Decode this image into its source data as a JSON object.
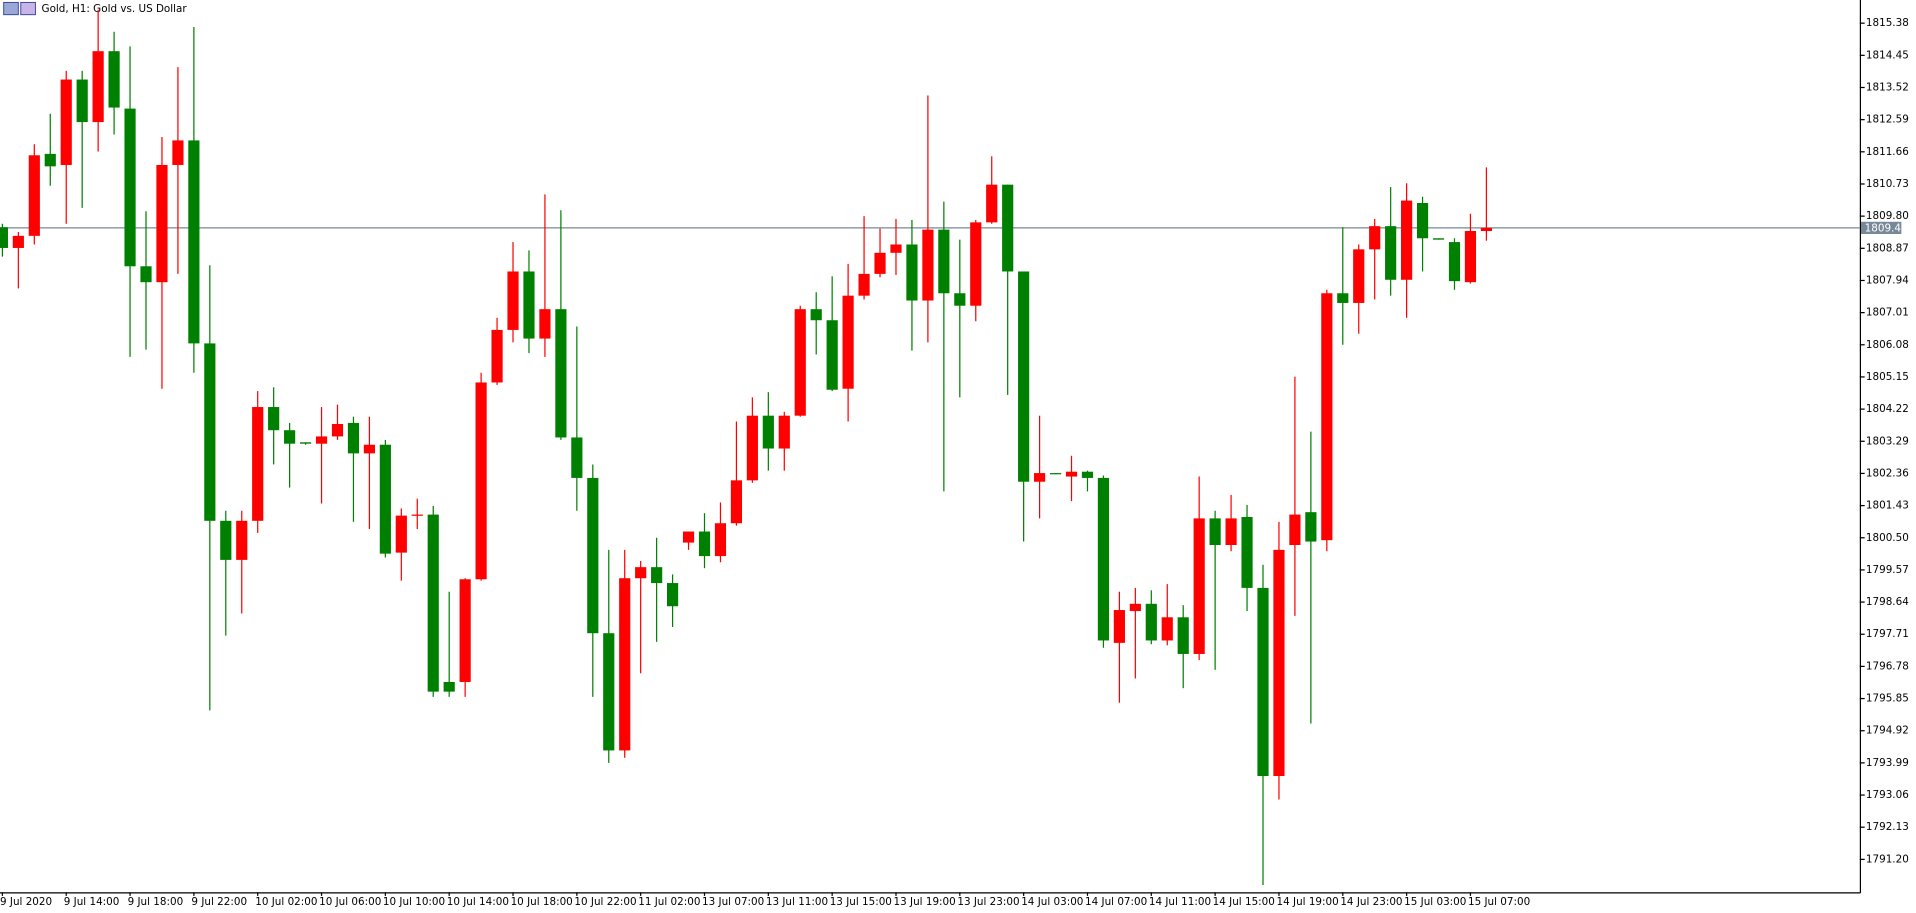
{
  "chart_data": {
    "type": "candlestick",
    "title": "Gold, H1:  Gold vs. US Dollar",
    "categories": [
      "9 Jul 2020",
      null,
      null,
      null,
      "9 Jul 14:00",
      null,
      null,
      null,
      "9 Jul 18:00",
      null,
      null,
      null,
      "9 Jul 22:00",
      null,
      null,
      null,
      "10 Jul 02:00",
      null,
      null,
      null,
      "10 Jul 06:00",
      null,
      null,
      null,
      "10 Jul 10:00",
      null,
      null,
      null,
      "10 Jul 14:00",
      null,
      null,
      null,
      "10 Jul 18:00",
      null,
      null,
      null,
      "10 Jul 22:00",
      null,
      null,
      null,
      "11 Jul 02:00",
      null,
      null,
      null,
      "13 Jul 07:00",
      null,
      null,
      null,
      "13 Jul 11:00",
      null,
      null,
      null,
      "13 Jul 15:00",
      null,
      null,
      null,
      "13 Jul 19:00",
      null,
      null,
      null,
      "13 Jul 23:00",
      null,
      null,
      null,
      "14 Jul 03:00",
      null,
      null,
      null,
      "14 Jul 07:00",
      null,
      null,
      null,
      "14 Jul 11:00",
      null,
      null,
      null,
      "14 Jul 15:00",
      null,
      null,
      null,
      "14 Jul 19:00",
      null,
      null,
      null,
      "14 Jul 23:00",
      null,
      null,
      null,
      "15 Jul 03:00",
      null,
      null,
      null,
      "15 Jul 07:00",
      null
    ],
    "open": [
      1809.48,
      1808.88,
      1809.23,
      1811.6,
      1811.28,
      1813.75,
      1812.52,
      1814.57,
      1812.91,
      1808.35,
      1807.89,
      1811.28,
      1811.99,
      1806.12,
      1800.99,
      1799.86,
      1800.99,
      1804.28,
      1803.61,
      1803.26,
      1803.22,
      1803.43,
      1803.82,
      1802.94,
      1803.19,
      1800.07,
      1801.14,
      1801.17,
      1796.33,
      1796.33,
      1799.3,
      1804.99,
      1806.51,
      1808.2,
      1806.26,
      1807.11,
      1803.4,
      1802.23,
      1797.74,
      1794.35,
      1799.33,
      1799.65,
      1799.19,
      1800.36,
      1800.68,
      1799.97,
      1800.92,
      1802.16,
      1804.03,
      1803.08,
      1804.03,
      1807.11,
      1806.79,
      1804.81,
      1807.5,
      1808.13,
      1808.74,
      1808.98,
      1807.36,
      1809.41,
      1807.57,
      1807.21,
      1809.62,
      1810.71,
      1808.2,
      1802.12,
      1802.37,
      1802.27,
      1802.41,
      1802.23,
      1797.46,
      1798.38,
      1798.59,
      1797.53,
      1798.2,
      1797.14,
      1801.06,
      1800.29,
      1801.1,
      1799.05,
      1793.61,
      1800.29,
      1801.24,
      1800.43,
      1807.57,
      1807.29,
      1808.84,
      1809.51,
      1807.96,
      1810.18,
      1809.16,
      1809.05,
      1807.89,
      1809.37
    ],
    "high": [
      1809.58,
      1809.34,
      1811.88,
      1812.76,
      1814.0,
      1814.0,
      1815.77,
      1815.13,
      1814.71,
      1809.94,
      1812.09,
      1814.11,
      1815.27,
      1808.38,
      1801.28,
      1801.28,
      1804.74,
      1804.85,
      1803.82,
      1803.26,
      1804.28,
      1804.35,
      1804.0,
      1804.0,
      1803.33,
      1801.35,
      1801.63,
      1801.42,
      1798.94,
      1799.33,
      1805.27,
      1806.86,
      1809.05,
      1808.81,
      1810.43,
      1809.97,
      1806.61,
      1802.62,
      1800.15,
      1800.15,
      1799.83,
      1800.5,
      1799.44,
      1800.68,
      1801.21,
      1801.52,
      1803.86,
      1804.56,
      1804.71,
      1804.14,
      1807.21,
      1807.6,
      1808.06,
      1808.42,
      1809.8,
      1809.44,
      1809.72,
      1809.69,
      1813.29,
      1810.22,
      1809.12,
      1809.69,
      1811.53,
      1810.71,
      1808.2,
      1804.03,
      1802.37,
      1802.87,
      1802.44,
      1802.3,
      1798.94,
      1799.05,
      1798.98,
      1799.16,
      1798.55,
      1802.27,
      1801.28,
      1801.74,
      1801.45,
      1799.72,
      1800.96,
      1805.16,
      1803.57,
      1807.67,
      1809.48,
      1808.98,
      1809.72,
      1810.64,
      1810.75,
      1810.36,
      1809.16,
      1809.16,
      1809.87,
      1811.21
    ],
    "low": [
      1808.63,
      1807.71,
      1808.98,
      1810.68,
      1809.58,
      1810.04,
      1811.67,
      1812.16,
      1805.73,
      1805.94,
      1804.81,
      1808.13,
      1805.27,
      1795.51,
      1797.67,
      1798.31,
      1800.64,
      1802.62,
      1801.95,
      1803.19,
      1801.49,
      1803.33,
      1800.96,
      1800.75,
      1799.93,
      1799.26,
      1800.75,
      1795.9,
      1795.9,
      1795.9,
      1799.26,
      1804.92,
      1806.15,
      1805.84,
      1805.73,
      1803.33,
      1801.28,
      1795.9,
      1793.99,
      1794.14,
      1796.58,
      1797.49,
      1797.92,
      1800.15,
      1799.62,
      1799.79,
      1800.85,
      1802.09,
      1802.44,
      1802.44,
      1804.0,
      1805.8,
      1804.74,
      1803.86,
      1807.39,
      1808.03,
      1808.1,
      1805.91,
      1806.15,
      1801.84,
      1804.56,
      1806.76,
      1809.58,
      1804.63,
      1800.39,
      1801.06,
      1802.34,
      1801.56,
      1801.84,
      1797.32,
      1795.73,
      1796.43,
      1797.42,
      1797.39,
      1796.15,
      1796.96,
      1796.68,
      1800.11,
      1798.38,
      1790.46,
      1792.93,
      1798.24,
      1795.13,
      1800.11,
      1806.08,
      1806.4,
      1807.39,
      1807.5,
      1806.86,
      1808.2,
      1809.12,
      1807.67,
      1807.85,
      1809.09
    ],
    "close": [
      1808.88,
      1809.23,
      1811.56,
      1811.24,
      1813.75,
      1812.52,
      1814.57,
      1812.94,
      1808.35,
      1807.89,
      1811.28,
      1811.99,
      1806.12,
      1800.99,
      1799.86,
      1800.99,
      1804.28,
      1803.61,
      1803.22,
      1803.22,
      1803.43,
      1803.79,
      1802.94,
      1803.19,
      1800.04,
      1801.14,
      1801.17,
      1796.05,
      1796.05,
      1799.3,
      1804.99,
      1806.51,
      1808.2,
      1806.26,
      1807.11,
      1803.4,
      1802.23,
      1797.74,
      1794.35,
      1799.33,
      1799.65,
      1799.19,
      1798.52,
      1800.68,
      1799.97,
      1800.92,
      1802.16,
      1804.03,
      1803.08,
      1804.03,
      1807.11,
      1806.79,
      1804.78,
      1807.5,
      1808.13,
      1808.74,
      1808.98,
      1807.36,
      1809.41,
      1807.57,
      1807.21,
      1809.62,
      1810.71,
      1808.2,
      1802.12,
      1802.37,
      1802.34,
      1802.41,
      1802.23,
      1797.53,
      1798.41,
      1798.59,
      1797.53,
      1798.2,
      1797.14,
      1801.06,
      1800.29,
      1801.06,
      1799.05,
      1793.61,
      1800.15,
      1801.17,
      1800.39,
      1807.57,
      1807.29,
      1808.84,
      1809.51,
      1807.96,
      1810.25,
      1809.16,
      1809.12,
      1807.92,
      1809.37,
      1809.46
    ],
    "up_color": "#ff0000",
    "down_color": "#008000",
    "last_price": 1809.46,
    "last_price_color": "#778899",
    "xlim": [
      -0.15,
      116.4
    ],
    "ylim": [
      1790.25,
      1816.05
    ],
    "yticks": [
      1815.38,
      1814.45,
      1813.52,
      1812.59,
      1811.66,
      1810.73,
      {
        "value": 1809.8,
        "label": "1809.80"
      },
      1808.87,
      1807.94,
      1807.01,
      1806.08,
      1805.15,
      1804.22,
      1803.29,
      1802.36,
      1801.43,
      {
        "value": 1800.5,
        "label": "1800.50"
      },
      1799.57,
      1798.64,
      1797.71,
      1796.78,
      1795.85,
      1794.92,
      1793.99,
      1793.06,
      1792.13,
      {
        "value": 1791.2,
        "label": "1791.20"
      }
    ],
    "grid": false
  }
}
